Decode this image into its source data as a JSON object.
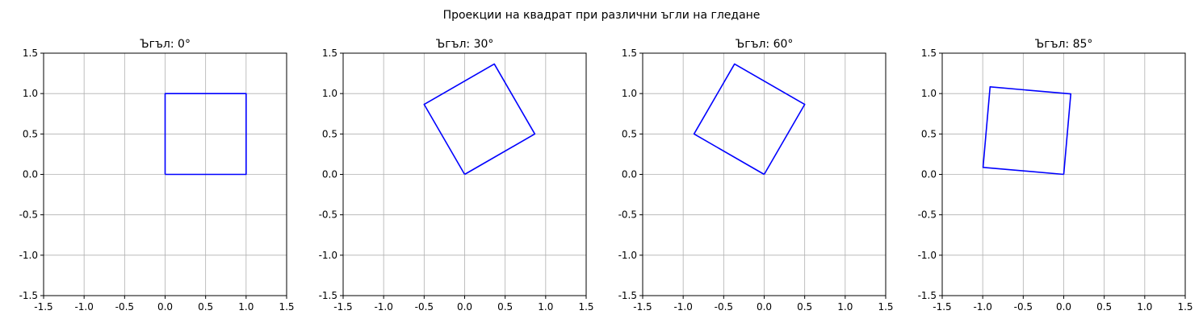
{
  "figure": {
    "suptitle": "Проекции на квадрат при различни ъгли на гледане",
    "line_color": "#0000ff",
    "grid_color": "#b0b0b0"
  },
  "chart_data": [
    {
      "type": "line",
      "title": "Ъгъл: 0°",
      "xlim": [
        -1.5,
        1.5
      ],
      "ylim": [
        -1.5,
        1.5
      ],
      "xticks": [
        "-1.5",
        "-1.0",
        "-0.5",
        "0.0",
        "0.5",
        "1.0",
        "1.5"
      ],
      "yticks": [
        "-1.5",
        "-1.0",
        "-0.5",
        "0.0",
        "0.5",
        "1.0",
        "1.5"
      ],
      "grid": true,
      "x": [
        0,
        1,
        1,
        0,
        0
      ],
      "y": [
        0,
        0,
        1,
        1,
        0
      ]
    },
    {
      "type": "line",
      "title": "Ъгъл: 30°",
      "xlim": [
        -1.5,
        1.5
      ],
      "ylim": [
        -1.5,
        1.5
      ],
      "xticks": [
        "-1.5",
        "-1.0",
        "-0.5",
        "0.0",
        "0.5",
        "1.0",
        "1.5"
      ],
      "yticks": [
        "-1.5",
        "-1.0",
        "-0.5",
        "0.0",
        "0.5",
        "1.0",
        "1.5"
      ],
      "grid": true,
      "x": [
        0,
        0.866,
        0.366,
        -0.5,
        0
      ],
      "y": [
        0,
        0.5,
        1.366,
        0.866,
        0
      ]
    },
    {
      "type": "line",
      "title": "Ъгъл: 60°",
      "xlim": [
        -1.5,
        1.5
      ],
      "ylim": [
        -1.5,
        1.5
      ],
      "xticks": [
        "-1.5",
        "-1.0",
        "-0.5",
        "0.0",
        "0.5",
        "1.0",
        "1.5"
      ],
      "yticks": [
        "-1.5",
        "-1.0",
        "-0.5",
        "0.0",
        "0.5",
        "1.0",
        "1.5"
      ],
      "grid": true,
      "x": [
        0,
        0.5,
        -0.366,
        -0.866,
        0
      ],
      "y": [
        0,
        0.866,
        1.366,
        0.5,
        0
      ]
    },
    {
      "type": "line",
      "title": "Ъгъл: 85°",
      "xlim": [
        -1.5,
        1.5
      ],
      "ylim": [
        -1.5,
        1.5
      ],
      "xticks": [
        "-1.5",
        "-1.0",
        "-0.5",
        "0.0",
        "0.5",
        "1.0",
        "1.5"
      ],
      "yticks": [
        "-1.5",
        "-1.0",
        "-0.5",
        "0.0",
        "0.5",
        "1.0",
        "1.5"
      ],
      "grid": true,
      "x": [
        0,
        0.087,
        -0.909,
        -0.996,
        0
      ],
      "y": [
        0,
        0.996,
        1.083,
        0.087,
        0
      ]
    }
  ]
}
